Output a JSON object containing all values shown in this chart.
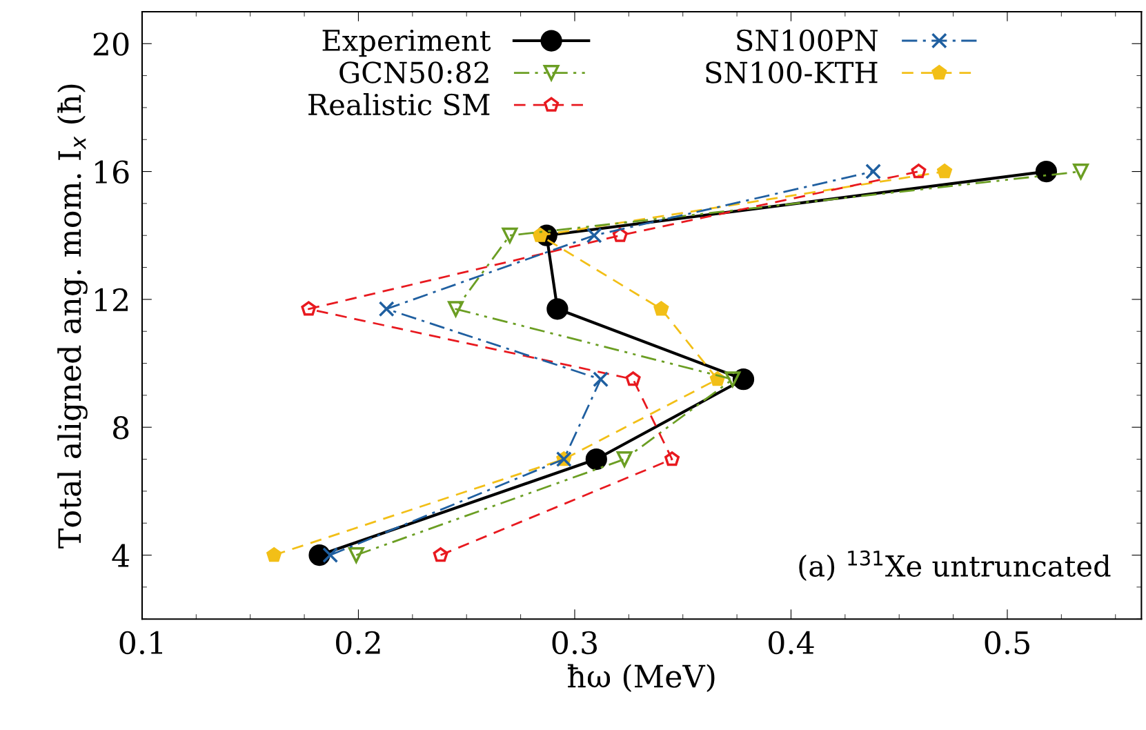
{
  "chart_data": {
    "type": "line",
    "xlabel": "ħω (MeV)",
    "ylabel": "Total aligned ang. mom. I$_{x}$ (ħ)",
    "xlim": [
      0.1,
      0.562
    ],
    "ylim": [
      2,
      21
    ],
    "xticks": [
      0.1,
      0.2,
      0.3,
      0.4,
      0.5
    ],
    "yticks": [
      4,
      8,
      12,
      16,
      20
    ],
    "grid": false,
    "legend": "top",
    "annotations": [
      "(a) $^{131}$Xe untruncated"
    ],
    "series": [
      {
        "name": "Experiment",
        "color": "#000000",
        "marker": "circle",
        "line_style": "solid",
        "x": [
          0.182,
          0.31,
          0.378,
          0.292,
          0.287,
          0.518
        ],
        "values": [
          4,
          7,
          9.5,
          11.7,
          14,
          16
        ]
      },
      {
        "name": "GCN50:82",
        "color": "#6b9e23",
        "marker": "triangle",
        "line_style": "dashdotdot",
        "x": [
          0.199,
          0.323,
          0.373,
          0.245,
          0.27,
          0.534
        ],
        "values": [
          4,
          7,
          9.5,
          11.7,
          14,
          16
        ]
      },
      {
        "name": "Realistic SM",
        "color": "#e8191f",
        "marker": "circle",
        "line_style": "dashed",
        "x": [
          0.238,
          0.345,
          0.327,
          0.177,
          0.321,
          0.459
        ],
        "values": [
          4,
          7,
          9.5,
          11.7,
          14,
          16
        ]
      },
      {
        "name": "SN100PN",
        "color": "#1f5fa0",
        "marker": "cross",
        "line_style": "dashdot",
        "x": [
          0.187,
          0.295,
          0.312,
          0.213,
          0.309,
          0.438
        ],
        "values": [
          4,
          7,
          9.5,
          11.7,
          14,
          16
        ]
      },
      {
        "name": "SN100-KTH",
        "color": "#f2bf17",
        "marker": "circle",
        "line_style": "dashed",
        "x": [
          0.161,
          0.295,
          0.366,
          0.34,
          0.284,
          0.471
        ],
        "values": [
          4,
          7,
          9.5,
          11.7,
          14,
          16
        ]
      }
    ]
  }
}
